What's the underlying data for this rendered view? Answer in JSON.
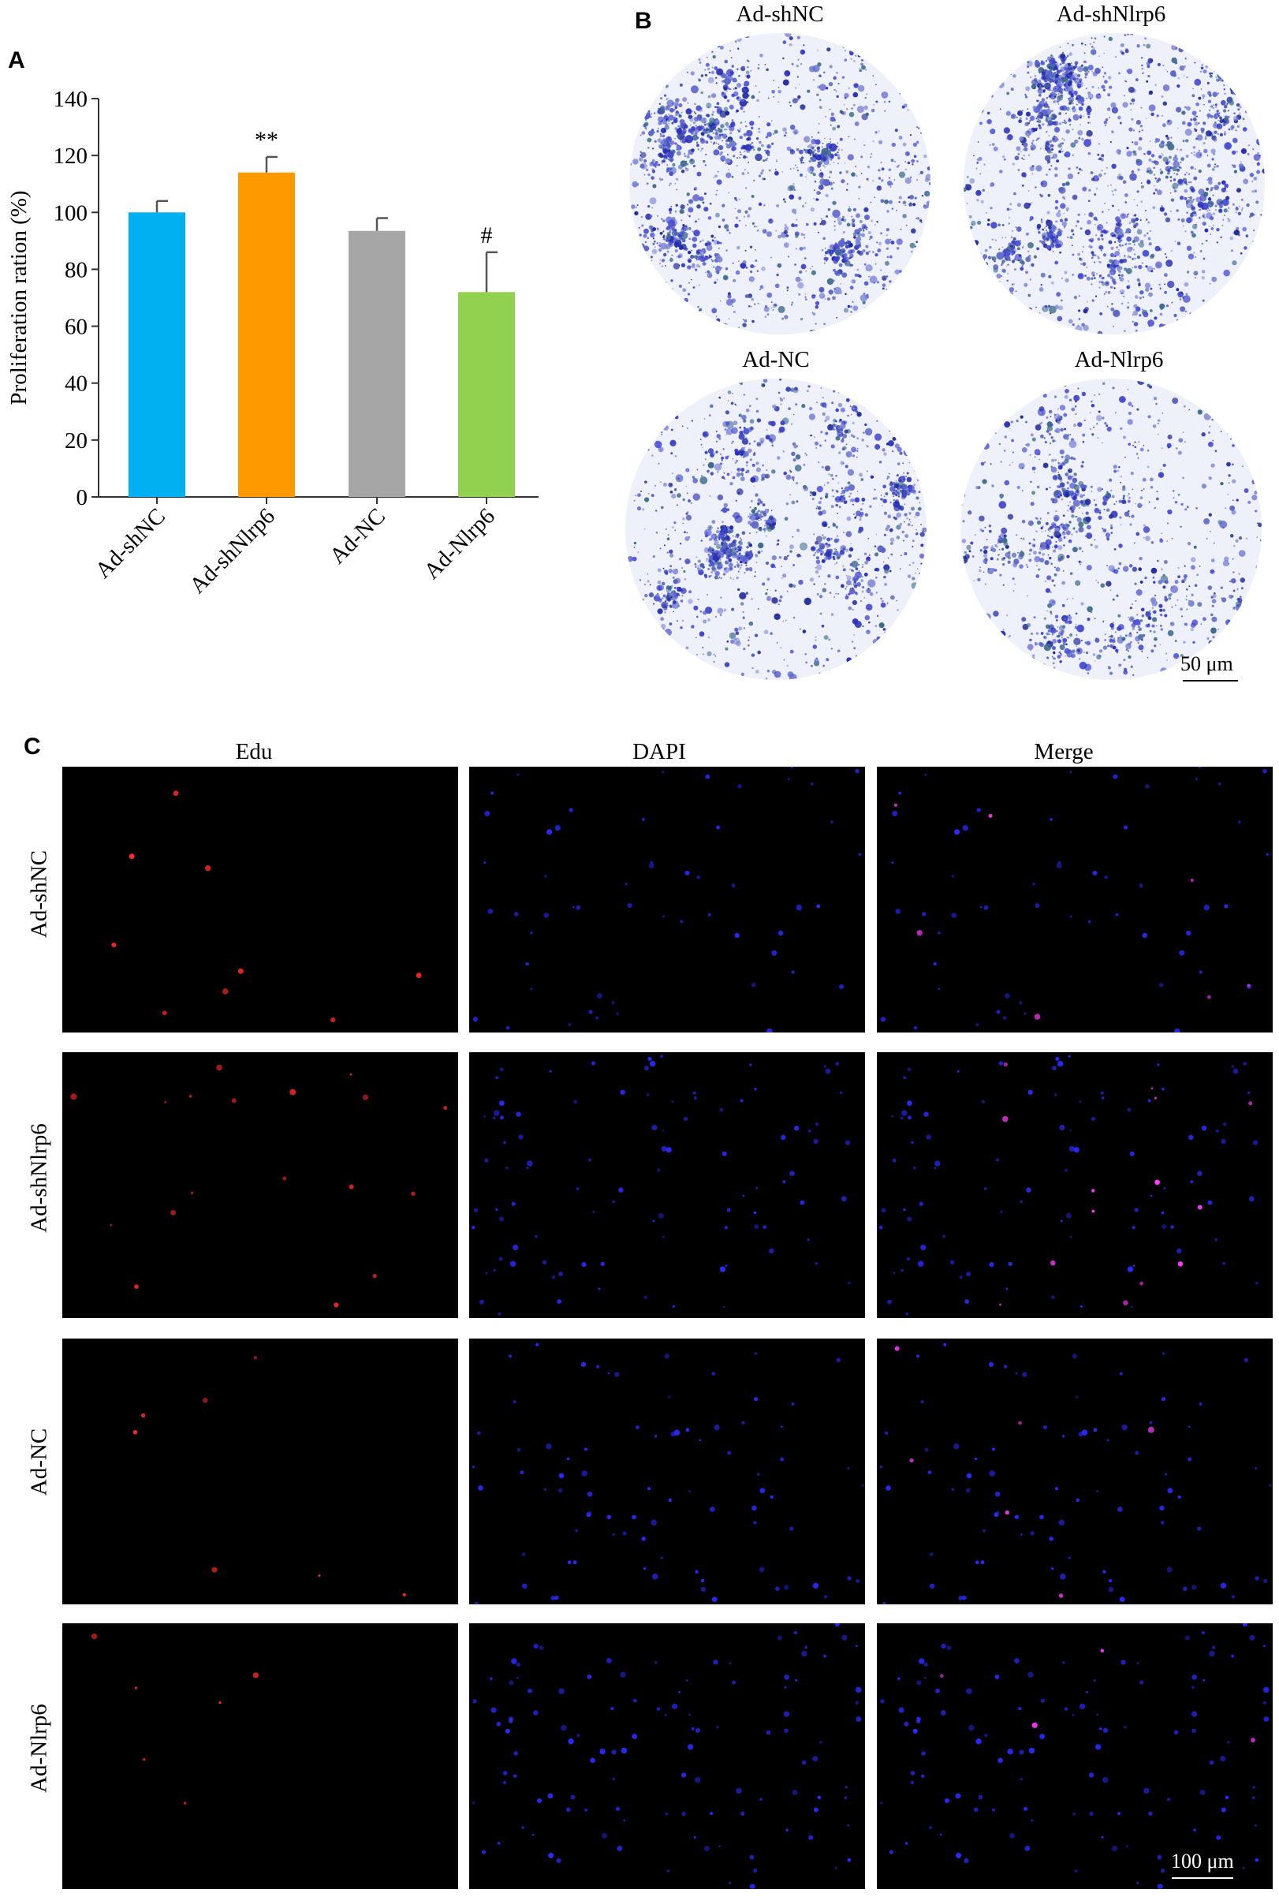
{
  "panels": {
    "a": "A",
    "b": "B",
    "c": "C"
  },
  "chart_data": {
    "type": "bar",
    "categories": [
      "Ad-shNC",
      "Ad-shNlrp6",
      "Ad-NC",
      "Ad-Nlrp6"
    ],
    "values": [
      100,
      114,
      93.5,
      72
    ],
    "errors": [
      4,
      5.5,
      4.5,
      14
    ],
    "annotations": [
      "",
      "**",
      "",
      "#"
    ],
    "colors": [
      "#00b0f0",
      "#ff9900",
      "#a6a6a6",
      "#92d050"
    ],
    "ylabel": "Proliferation ration (%)",
    "xlabel": "",
    "ylim": [
      0,
      140
    ],
    "yticks": [
      0,
      20,
      40,
      60,
      80,
      100,
      120,
      140
    ],
    "grid": false
  },
  "panel_b": {
    "titles": [
      "Ad-shNC",
      "Ad-shNlrp6",
      "Ad-NC",
      "Ad-Nlrp6"
    ],
    "scale_bar": "50 μm"
  },
  "panel_c": {
    "columns": [
      "Edu",
      "DAPI",
      "Merge"
    ],
    "rows": [
      "Ad-shNC",
      "Ad-shNlrp6",
      "Ad-NC",
      "Ad-Nlrp6"
    ],
    "scale_bar": "100 μm"
  },
  "colors": {
    "stain_purple": "#3a3fc9",
    "edu_red": "#ff2a2a",
    "dapi_blue": "#2b2bff",
    "merge_magenta": "#ff3cff"
  }
}
